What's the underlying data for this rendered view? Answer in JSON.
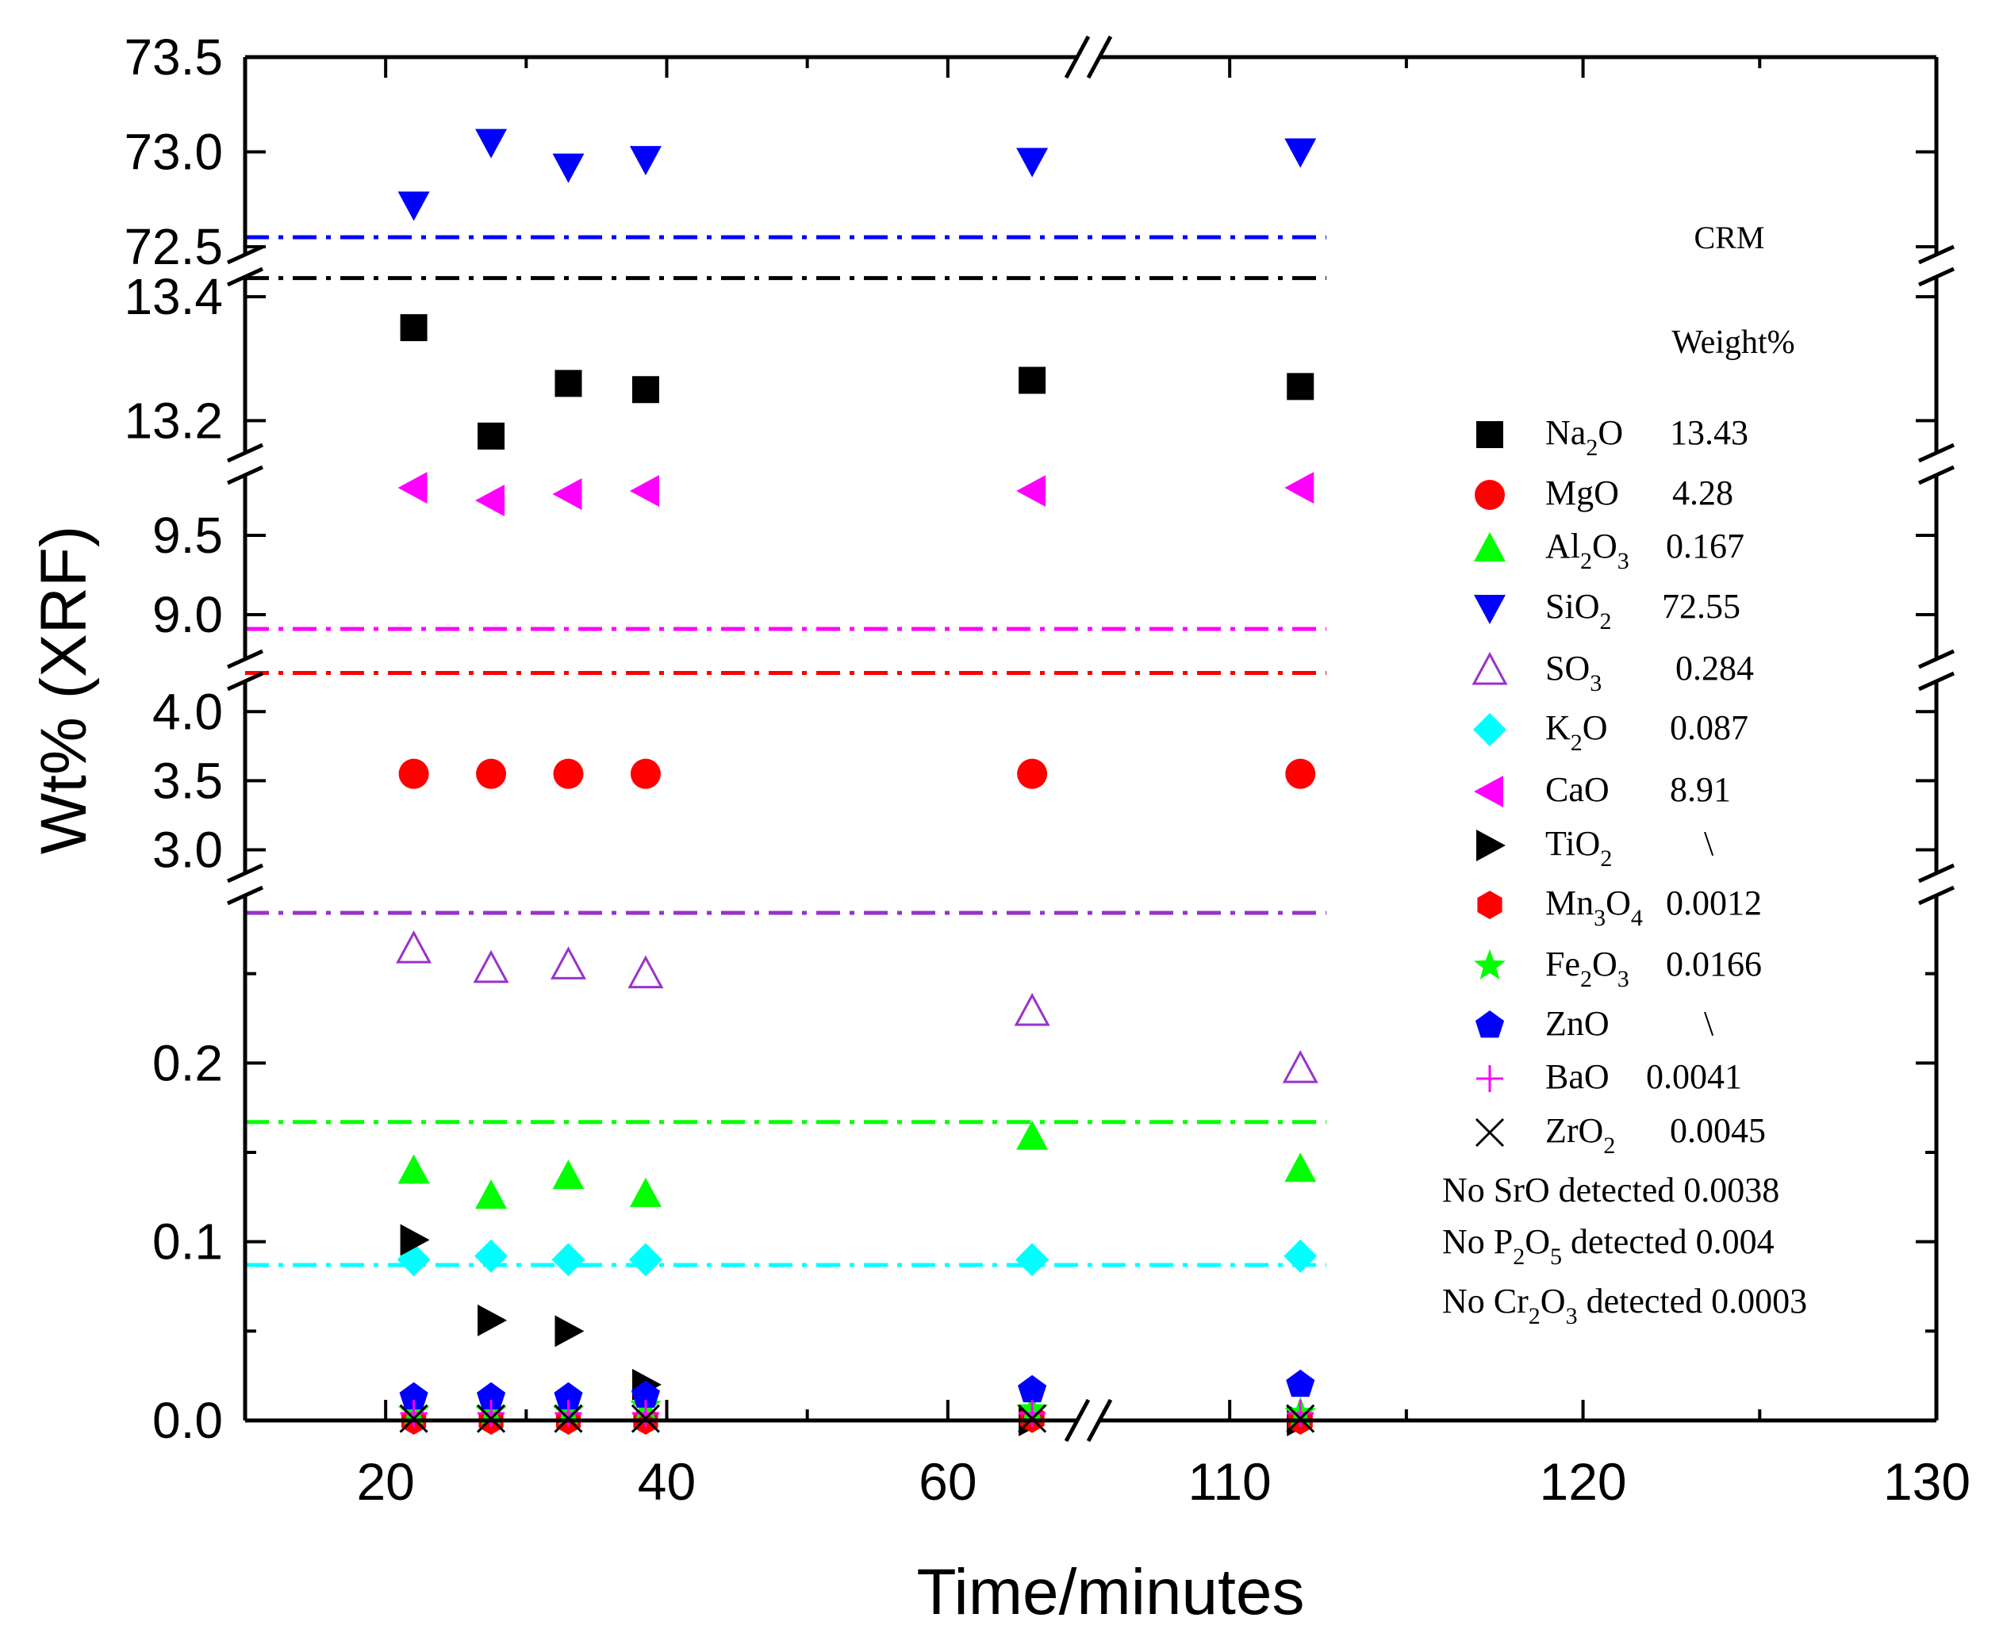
{
  "chart_data": {
    "type": "scatter",
    "title": "",
    "xlabel": "Time/minutes",
    "ylabel": "Wt% (XRF)",
    "x_axis": {
      "break": "between 60 and 110",
      "segments": [
        {
          "range": [
            10,
            70
          ],
          "ticks": [
            "20",
            "40",
            "60"
          ]
        },
        {
          "range": [
            106,
            130
          ],
          "ticks": [
            "110",
            "120",
            "130"
          ]
        }
      ]
    },
    "y_axis": {
      "segments": [
        {
          "range": [
            0.0,
            0.3
          ],
          "ticks": [
            "0.0",
            "0.1",
            "0.2"
          ]
        },
        {
          "range": [
            2.75,
            4.3
          ],
          "ticks": [
            "3.0",
            "3.5",
            "4.0"
          ]
        },
        {
          "range": [
            8.65,
            9.95
          ],
          "ticks": [
            "9.0",
            "9.5"
          ]
        },
        {
          "range": [
            13.13,
            13.45
          ],
          "ticks": [
            "13.2",
            "13.4"
          ]
        },
        {
          "range": [
            72.4,
            73.5
          ],
          "ticks": [
            "72.5",
            "73.0",
            "73.5"
          ]
        }
      ]
    },
    "x": [
      22,
      27.5,
      33,
      38.5,
      66,
      112
    ],
    "series": [
      {
        "name": "Na2O",
        "crm": "13.43",
        "marker": "square-filled",
        "color": "#000000",
        "values": [
          13.35,
          13.175,
          13.26,
          13.25,
          13.265,
          13.255
        ]
      },
      {
        "name": "MgO",
        "crm": "4.28",
        "marker": "circle-filled",
        "color": "#ff0000",
        "values": [
          3.55,
          3.55,
          3.55,
          3.55,
          3.55,
          3.55
        ]
      },
      {
        "name": "Al2O3",
        "crm": "0.167",
        "marker": "triangle-up-filled",
        "color": "#00ff00",
        "values": [
          0.14,
          0.126,
          0.137,
          0.127,
          0.159,
          0.141
        ]
      },
      {
        "name": "SiO2",
        "crm": "72.55",
        "marker": "triangle-down-filled",
        "color": "#0000ff",
        "values": [
          72.72,
          73.05,
          72.92,
          72.96,
          72.95,
          73.0
        ]
      },
      {
        "name": "SO3",
        "crm": "0.284",
        "marker": "triangle-up-open",
        "color": "#9933cc",
        "values": [
          0.264,
          0.253,
          0.255,
          0.25,
          0.229,
          0.197
        ]
      },
      {
        "name": "K2O",
        "crm": "0.087",
        "marker": "diamond-filled",
        "color": "#00ffff",
        "values": [
          0.09,
          0.092,
          0.09,
          0.09,
          0.09,
          0.092
        ]
      },
      {
        "name": "CaO",
        "crm": "8.91",
        "marker": "triangle-left-filled",
        "color": "#ff00ff",
        "values": [
          9.8,
          9.72,
          9.76,
          9.78,
          9.78,
          9.8
        ]
      },
      {
        "name": "TiO2",
        "crm": "\\",
        "marker": "triangle-right-filled",
        "color": "#000000",
        "values": [
          0.101,
          0.056,
          0.05,
          0.02,
          0.0,
          0.0
        ]
      },
      {
        "name": "Mn3O4",
        "crm": "0.0012",
        "marker": "hexagon-filled",
        "color": "#ff0000",
        "values": [
          0.0,
          0.0,
          0.0,
          0.0,
          0.001,
          0.0
        ]
      },
      {
        "name": "Fe2O3",
        "crm": "0.0166",
        "marker": "star-filled",
        "color": "#00ff00",
        "values": [
          0.005,
          0.005,
          0.005,
          0.008,
          0.006,
          0.004
        ]
      },
      {
        "name": "ZnO",
        "crm": "\\",
        "marker": "pentagon-filled",
        "color": "#0000ff",
        "values": [
          0.013,
          0.013,
          0.013,
          0.014,
          0.017,
          0.02
        ]
      },
      {
        "name": "BaO",
        "crm": "0.0041",
        "marker": "plus",
        "color": "#ff00ff",
        "values": [
          0.004,
          0.004,
          0.004,
          0.004,
          0.004,
          0.004
        ]
      },
      {
        "name": "ZrO2",
        "crm": "0.0045",
        "marker": "cross",
        "color": "#000000",
        "values": [
          0.001,
          0.001,
          0.001,
          0.001,
          0.001,
          0.001
        ]
      }
    ],
    "crm_reference_lines": [
      {
        "name": "SiO2",
        "value": 72.55,
        "color": "#0000ff"
      },
      {
        "name": "Na2O",
        "value": 13.43,
        "color": "#000000"
      },
      {
        "name": "CaO",
        "value": 8.91,
        "color": "#ff00ff"
      },
      {
        "name": "MgO",
        "value": 4.28,
        "color": "#ff0000"
      },
      {
        "name": "SO3",
        "value": 0.284,
        "color": "#9933cc"
      },
      {
        "name": "Al2O3",
        "value": 0.167,
        "color": "#00ff00"
      },
      {
        "name": "K2O",
        "value": 0.087,
        "color": "#00ffff"
      }
    ],
    "legend": {
      "placement": "right",
      "header_crm": "CRM",
      "header_weight": "Weight%",
      "entries": [
        {
          "base": "Na",
          "sub": "2",
          "tail": "O",
          "value": "13.43"
        },
        {
          "base": "MgO",
          "sub": "",
          "tail": "",
          "value": "4.28"
        },
        {
          "base": "Al",
          "sub": "2",
          "tail": "O",
          "sub2": "3",
          "value": "0.167"
        },
        {
          "base": "SiO",
          "sub": "2",
          "tail": "",
          "value": "72.55"
        },
        {
          "base": "SO",
          "sub": "3",
          "tail": "",
          "value": "0.284"
        },
        {
          "base": "K",
          "sub": "2",
          "tail": "O",
          "value": "0.087"
        },
        {
          "base": "CaO",
          "sub": "",
          "tail": "",
          "value": "8.91"
        },
        {
          "base": "TiO",
          "sub": "2",
          "tail": "",
          "value": "\\"
        },
        {
          "base": "Mn",
          "sub": "3",
          "tail": "O",
          "sub2": "4",
          "value": "0.0012"
        },
        {
          "base": "Fe",
          "sub": "2",
          "tail": "O",
          "sub2": "3",
          "value": "0.0166"
        },
        {
          "base": "ZnO",
          "sub": "",
          "tail": "",
          "value": "\\"
        },
        {
          "base": "BaO",
          "sub": "",
          "tail": "",
          "value": "0.0041"
        },
        {
          "base": "ZrO",
          "sub": "",
          "tail": "",
          "sub2": "2",
          "value": "0.0045"
        }
      ],
      "notes": [
        {
          "pre": "No SrO detected 0.0038",
          "sub": "",
          "post": ""
        },
        {
          "pre": "No P",
          "sub": "2",
          "mid": "O",
          "sub2": "5",
          "post": " detected 0.004"
        },
        {
          "pre": "No Cr",
          "sub": "2",
          "mid": "O",
          "sub2": "3",
          "post": " detected 0.0003"
        }
      ]
    }
  }
}
